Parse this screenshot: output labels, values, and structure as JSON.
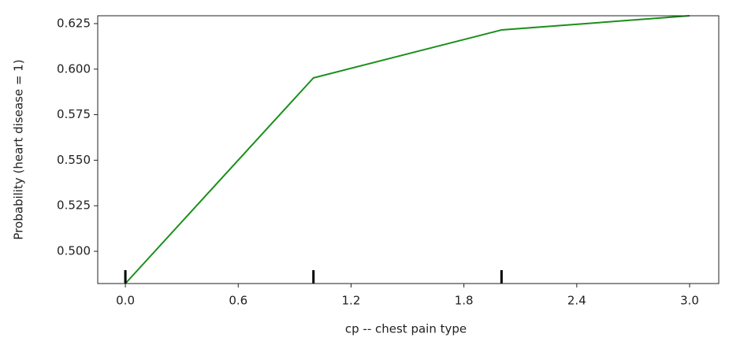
{
  "chart_data": {
    "type": "line",
    "x_label": "cp -- chest pain type",
    "y_label": "Probability (heart disease = 1)",
    "x": [
      0,
      1,
      2,
      3
    ],
    "series": [
      {
        "color": "#1a8f1a",
        "values": [
          0.4823,
          0.5952,
          0.6215,
          0.6293
        ]
      }
    ],
    "rug": [
      0,
      1,
      2
    ],
    "xlim": [
      -0.147,
      3.155
    ],
    "ylim": [
      0.4823,
      0.6293
    ],
    "xticks": [
      {
        "value": 0,
        "label": "0.0"
      },
      0.6,
      1.2,
      1.8,
      2.4,
      {
        "value": 3,
        "label": "3.0"
      }
    ],
    "yticks": [
      {
        "value": 0.5,
        "label": "0.500"
      },
      {
        "value": 0.525,
        "label": "0.525"
      },
      {
        "value": 0.55,
        "label": "0.550"
      },
      {
        "value": 0.575,
        "label": "0.575"
      },
      {
        "value": 0.6,
        "label": "0.600"
      },
      {
        "value": 0.625,
        "label": "0.625"
      }
    ],
    "grid": false
  }
}
